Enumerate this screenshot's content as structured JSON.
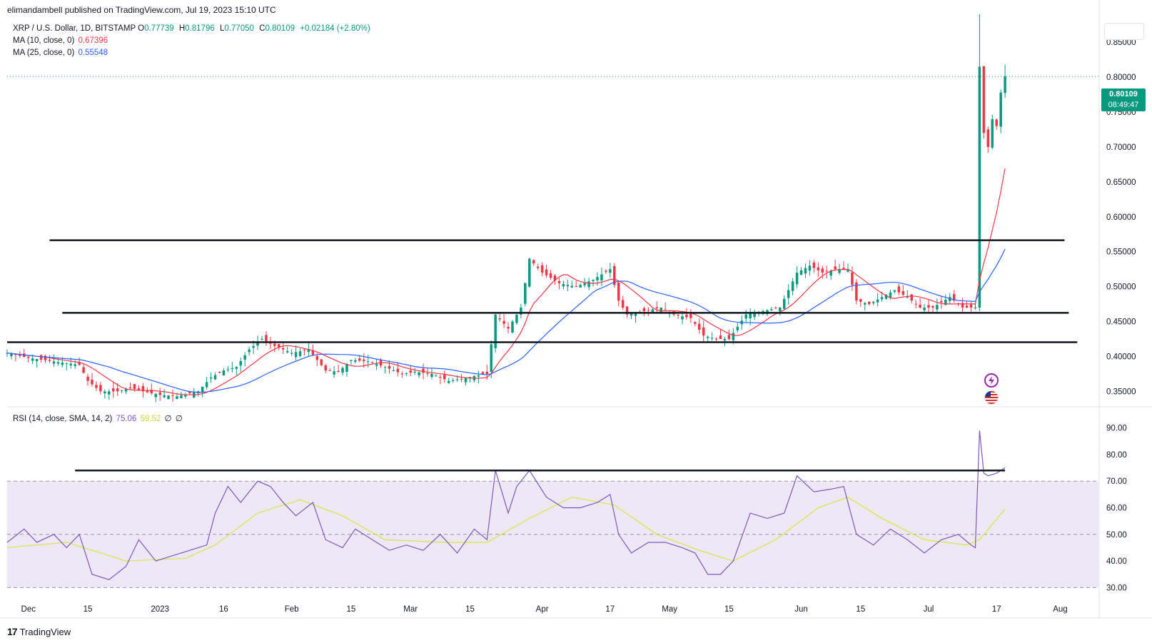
{
  "publisher": "elimandambell published on TradingView.com, Jul 19, 2023 15:10 UTC",
  "symbol_line": {
    "symbol": "XRP / U.S. Dollar, 1D, BITSTAMP",
    "open_label": "O",
    "open": "0.77739",
    "high_label": "H",
    "high": "0.81796",
    "low_label": "L",
    "low": "0.77050",
    "close_label": "C",
    "close": "0.80109",
    "change": "+0.02184 (+2.80%)"
  },
  "ma10": {
    "label": "MA (10, close, 0)",
    "value": "0.67396",
    "color": "#f23645"
  },
  "ma25": {
    "label": "MA (25, close, 0)",
    "value": "0.55548",
    "color": "#2962ff"
  },
  "rsi_legend": {
    "label": "RSI (14, close, SMA, 14, 2)",
    "rsi": "75.06",
    "sma": "59.52",
    "extra1": "∅",
    "extra2": "∅"
  },
  "price_label": {
    "price": "0.80109",
    "countdown": "08:49:47"
  },
  "brand": {
    "name": "TradingView"
  },
  "colors": {
    "up": "#089981",
    "down": "#f23645",
    "rsi": "#7e57c2",
    "rsi_sma": "#d6e64a",
    "rsi_band": "#ede7f6"
  },
  "icons": [
    "tradingview-logo-icon",
    "lightning-event-icon",
    "us-flag-icon"
  ],
  "chart_data": {
    "type": "candlestick",
    "x_range": [
      "2022-11-26",
      "2023-08-10"
    ],
    "y_range": [
      0.33,
      0.89
    ],
    "x_ticks": [
      {
        "date": "2022-12-01",
        "label": "Dec"
      },
      {
        "date": "2022-12-15",
        "label": "15"
      },
      {
        "date": "2023-01-01",
        "label": "2023"
      },
      {
        "date": "2023-01-16",
        "label": "16"
      },
      {
        "date": "2023-02-01",
        "label": "Feb"
      },
      {
        "date": "2023-02-15",
        "label": "15"
      },
      {
        "date": "2023-03-01",
        "label": "Mar"
      },
      {
        "date": "2023-03-15",
        "label": "15"
      },
      {
        "date": "2023-04-01",
        "label": "Apr"
      },
      {
        "date": "2023-04-17",
        "label": "17"
      },
      {
        "date": "2023-05-01",
        "label": "May"
      },
      {
        "date": "2023-05-15",
        "label": "15"
      },
      {
        "date": "2023-06-01",
        "label": "Jun"
      },
      {
        "date": "2023-06-15",
        "label": "15"
      },
      {
        "date": "2023-07-01",
        "label": "Jul"
      },
      {
        "date": "2023-07-17",
        "label": "17"
      },
      {
        "date": "2023-08-01",
        "label": "Aug"
      }
    ],
    "y_ticks": [
      "0.35000",
      "0.40000",
      "0.45000",
      "0.50000",
      "0.55000",
      "0.60000",
      "0.65000",
      "0.70000",
      "0.75000",
      "0.80000",
      "0.85000"
    ],
    "close_series": [
      [
        "2022-11-26",
        0.405
      ],
      [
        "2022-12-01",
        0.398
      ],
      [
        "2022-12-08",
        0.392
      ],
      [
        "2022-12-13",
        0.388
      ],
      [
        "2022-12-15",
        0.365
      ],
      [
        "2022-12-18",
        0.35
      ],
      [
        "2022-12-22",
        0.35
      ],
      [
        "2022-12-25",
        0.355
      ],
      [
        "2022-12-28",
        0.35
      ],
      [
        "2023-01-01",
        0.345
      ],
      [
        "2023-01-05",
        0.343
      ],
      [
        "2023-01-10",
        0.35
      ],
      [
        "2023-01-13",
        0.37
      ],
      [
        "2023-01-16",
        0.38
      ],
      [
        "2023-01-19",
        0.385
      ],
      [
        "2023-01-22",
        0.41
      ],
      [
        "2023-01-25",
        0.425
      ],
      [
        "2023-01-28",
        0.415
      ],
      [
        "2023-02-01",
        0.405
      ],
      [
        "2023-02-05",
        0.41
      ],
      [
        "2023-02-09",
        0.38
      ],
      [
        "2023-02-12",
        0.378
      ],
      [
        "2023-02-15",
        0.395
      ],
      [
        "2023-02-19",
        0.393
      ],
      [
        "2023-02-23",
        0.385
      ],
      [
        "2023-02-27",
        0.375
      ],
      [
        "2023-03-02",
        0.378
      ],
      [
        "2023-03-06",
        0.375
      ],
      [
        "2023-03-10",
        0.365
      ],
      [
        "2023-03-13",
        0.368
      ],
      [
        "2023-03-16",
        0.372
      ],
      [
        "2023-03-19",
        0.375
      ],
      [
        "2023-03-21",
        0.46
      ],
      [
        "2023-03-24",
        0.44
      ],
      [
        "2023-03-27",
        0.47
      ],
      [
        "2023-03-29",
        0.54
      ],
      [
        "2023-04-01",
        0.52
      ],
      [
        "2023-04-05",
        0.505
      ],
      [
        "2023-04-09",
        0.5
      ],
      [
        "2023-04-13",
        0.51
      ],
      [
        "2023-04-17",
        0.525
      ],
      [
        "2023-04-19",
        0.48
      ],
      [
        "2023-04-21",
        0.46
      ],
      [
        "2023-04-25",
        0.465
      ],
      [
        "2023-04-29",
        0.47
      ],
      [
        "2023-05-02",
        0.46
      ],
      [
        "2023-05-06",
        0.455
      ],
      [
        "2023-05-09",
        0.43
      ],
      [
        "2023-05-12",
        0.425
      ],
      [
        "2023-05-15",
        0.425
      ],
      [
        "2023-05-19",
        0.46
      ],
      [
        "2023-05-23",
        0.465
      ],
      [
        "2023-05-27",
        0.47
      ],
      [
        "2023-05-31",
        0.52
      ],
      [
        "2023-06-03",
        0.53
      ],
      [
        "2023-06-06",
        0.52
      ],
      [
        "2023-06-09",
        0.525
      ],
      [
        "2023-06-12",
        0.525
      ],
      [
        "2023-06-14",
        0.48
      ],
      [
        "2023-06-17",
        0.475
      ],
      [
        "2023-06-20",
        0.485
      ],
      [
        "2023-06-23",
        0.495
      ],
      [
        "2023-06-26",
        0.485
      ],
      [
        "2023-06-29",
        0.47
      ],
      [
        "2023-07-02",
        0.47
      ],
      [
        "2023-07-06",
        0.485
      ],
      [
        "2023-07-09",
        0.47
      ],
      [
        "2023-07-12",
        0.47
      ],
      [
        "2023-07-13",
        0.815
      ],
      [
        "2023-07-14",
        0.72
      ],
      [
        "2023-07-15",
        0.7
      ],
      [
        "2023-07-16",
        0.74
      ],
      [
        "2023-07-17",
        0.73
      ],
      [
        "2023-07-18",
        0.778
      ],
      [
        "2023-07-19",
        0.801
      ]
    ],
    "horizontal_lines": [
      {
        "from": "2022-12-06",
        "to": "2023-08-02",
        "price": 0.5665
      },
      {
        "from": "2022-12-09",
        "to": "2023-08-03",
        "price": 0.4625
      },
      {
        "from": "2022-11-26",
        "to": "2023-08-05",
        "price": 0.4205
      }
    ],
    "rsi": {
      "y_range": [
        25,
        95
      ],
      "y_ticks": [
        "30.00",
        "40.00",
        "50.00",
        "60.00",
        "70.00",
        "80.00",
        "90.00"
      ],
      "band": [
        30,
        70
      ],
      "mid": 50,
      "series": [
        [
          "2022-11-26",
          47
        ],
        [
          "2022-11-30",
          52
        ],
        [
          "2022-12-03",
          47
        ],
        [
          "2022-12-07",
          50
        ],
        [
          "2022-12-10",
          45
        ],
        [
          "2022-12-13",
          50
        ],
        [
          "2022-12-16",
          35
        ],
        [
          "2022-12-20",
          33
        ],
        [
          "2022-12-24",
          38
        ],
        [
          "2022-12-27",
          48
        ],
        [
          "2022-12-31",
          40
        ],
        [
          "2023-01-04",
          42
        ],
        [
          "2023-01-08",
          44
        ],
        [
          "2023-01-12",
          46
        ],
        [
          "2023-01-14",
          58
        ],
        [
          "2023-01-17",
          68
        ],
        [
          "2023-01-20",
          62
        ],
        [
          "2023-01-24",
          70
        ],
        [
          "2023-01-27",
          68
        ],
        [
          "2023-01-30",
          62
        ],
        [
          "2023-02-02",
          57
        ],
        [
          "2023-02-06",
          62
        ],
        [
          "2023-02-09",
          48
        ],
        [
          "2023-02-13",
          45
        ],
        [
          "2023-02-16",
          52
        ],
        [
          "2023-02-20",
          48
        ],
        [
          "2023-02-24",
          44
        ],
        [
          "2023-02-28",
          46
        ],
        [
          "2023-03-04",
          44
        ],
        [
          "2023-03-08",
          50
        ],
        [
          "2023-03-12",
          43
        ],
        [
          "2023-03-16",
          52
        ],
        [
          "2023-03-19",
          48
        ],
        [
          "2023-03-21",
          74
        ],
        [
          "2023-03-24",
          58
        ],
        [
          "2023-03-26",
          68
        ],
        [
          "2023-03-29",
          74
        ],
        [
          "2023-04-02",
          64
        ],
        [
          "2023-04-06",
          60
        ],
        [
          "2023-04-10",
          60
        ],
        [
          "2023-04-14",
          62
        ],
        [
          "2023-04-17",
          65
        ],
        [
          "2023-04-19",
          50
        ],
        [
          "2023-04-22",
          43
        ],
        [
          "2023-04-26",
          47
        ],
        [
          "2023-04-30",
          47
        ],
        [
          "2023-05-04",
          45
        ],
        [
          "2023-05-07",
          43
        ],
        [
          "2023-05-10",
          35
        ],
        [
          "2023-05-13",
          35
        ],
        [
          "2023-05-16",
          40
        ],
        [
          "2023-05-20",
          58
        ],
        [
          "2023-05-24",
          56
        ],
        [
          "2023-05-28",
          58
        ],
        [
          "2023-05-31",
          72
        ],
        [
          "2023-06-04",
          66
        ],
        [
          "2023-06-08",
          67
        ],
        [
          "2023-06-11",
          68
        ],
        [
          "2023-06-14",
          50
        ],
        [
          "2023-06-18",
          46
        ],
        [
          "2023-06-22",
          52
        ],
        [
          "2023-06-26",
          48
        ],
        [
          "2023-06-30",
          43
        ],
        [
          "2023-07-04",
          48
        ],
        [
          "2023-07-08",
          50
        ],
        [
          "2023-07-11",
          46
        ],
        [
          "2023-07-12",
          45
        ],
        [
          "2023-07-13",
          89
        ],
        [
          "2023-07-14",
          73
        ],
        [
          "2023-07-15",
          72
        ],
        [
          "2023-07-17",
          73
        ],
        [
          "2023-07-18",
          74
        ],
        [
          "2023-07-19",
          75.06
        ]
      ],
      "sma_series": [
        [
          "2022-11-26",
          45
        ],
        [
          "2022-12-10",
          47
        ],
        [
          "2022-12-24",
          40
        ],
        [
          "2023-01-07",
          41
        ],
        [
          "2023-01-14",
          46
        ],
        [
          "2023-01-24",
          58
        ],
        [
          "2023-02-03",
          63
        ],
        [
          "2023-02-13",
          57
        ],
        [
          "2023-02-23",
          48
        ],
        [
          "2023-03-09",
          47
        ],
        [
          "2023-03-19",
          47
        ],
        [
          "2023-03-29",
          56
        ],
        [
          "2023-04-08",
          64
        ],
        [
          "2023-04-18",
          61
        ],
        [
          "2023-04-28",
          50
        ],
        [
          "2023-05-08",
          44
        ],
        [
          "2023-05-16",
          40
        ],
        [
          "2023-05-26",
          48
        ],
        [
          "2023-06-05",
          60
        ],
        [
          "2023-06-12",
          64
        ],
        [
          "2023-06-20",
          56
        ],
        [
          "2023-06-30",
          48
        ],
        [
          "2023-07-10",
          46
        ],
        [
          "2023-07-13",
          48
        ],
        [
          "2023-07-19",
          59.52
        ]
      ],
      "horizontal_line": {
        "from": "2022-12-12",
        "to": "2023-07-19",
        "value": 74
      }
    }
  }
}
